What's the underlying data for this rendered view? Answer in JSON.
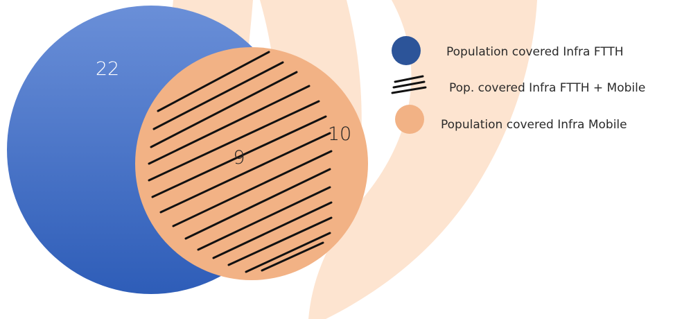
{
  "colors": {
    "infra_ftth_top": "#6a8fd8",
    "infra_ftth_bottom": "#2e5db8",
    "infra_mobile": "#f2b285",
    "hatch": "#111111",
    "background_watermark": "#fde4d0",
    "legend_ftth": "#2c5499",
    "legend_mobile": "#f2b285",
    "number_on_blue": "#ffffff",
    "number_on_orange": "#222222"
  },
  "venn": {
    "ftth_only_value": "22",
    "overlap_value": "9",
    "mobile_only_value": "10"
  },
  "legend": {
    "items": [
      {
        "icon": "blue-circle-icon",
        "label": "Population covered Infra FTTH"
      },
      {
        "icon": "hatch-lines-icon",
        "label": "Pop. covered Infra FTTH + Mobile"
      },
      {
        "icon": "orange-circle-icon",
        "label": "Population covered Infra Mobile"
      }
    ]
  }
}
